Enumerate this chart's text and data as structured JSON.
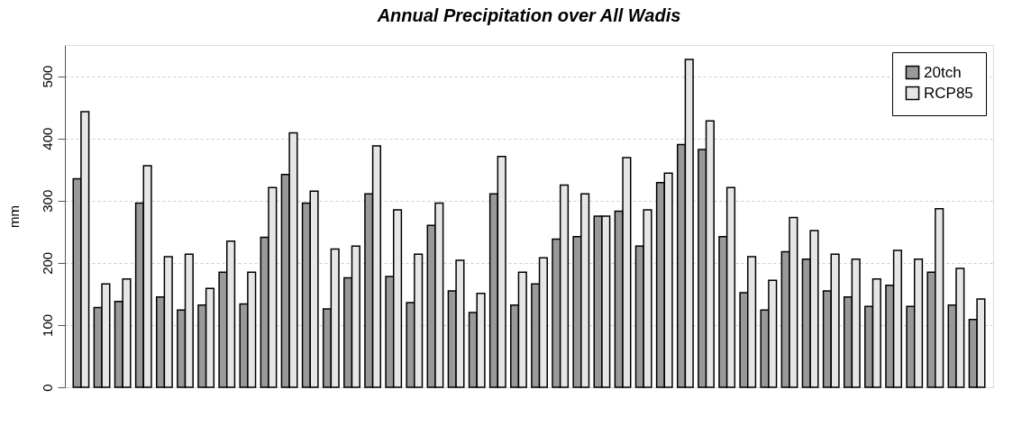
{
  "chart_data": {
    "type": "bar",
    "title": "Annual Precipitation over All Wadis",
    "ylabel": "mm",
    "categories": [
      null,
      null,
      null,
      null,
      null,
      null,
      null,
      null,
      null,
      null,
      null,
      null,
      null,
      null,
      null,
      null,
      null,
      null,
      null,
      null,
      null,
      null,
      null,
      null,
      null,
      null,
      null,
      null,
      null,
      null,
      null,
      null,
      null,
      null,
      null,
      null,
      null,
      null,
      null,
      null,
      null,
      null,
      null,
      null
    ],
    "series": [
      {
        "name": "20tch",
        "color": "#999999",
        "values": [
          335,
          128,
          138,
          296,
          145,
          124,
          132,
          185,
          134,
          241,
          342,
          296,
          126,
          176,
          311,
          178,
          136,
          260,
          155,
          120,
          311,
          132,
          166,
          238,
          242,
          275,
          283,
          227,
          329,
          390,
          382,
          242,
          152,
          124,
          218,
          206,
          155,
          145,
          130,
          164,
          130,
          185,
          132,
          109
        ]
      },
      {
        "name": "RCP85",
        "color": "#e6e6e6",
        "values": [
          443,
          166,
          174,
          356,
          210,
          214,
          159,
          235,
          185,
          321,
          409,
          315,
          222,
          227,
          388,
          285,
          214,
          296,
          204,
          151,
          371,
          185,
          208,
          325,
          311,
          275,
          369,
          285,
          344,
          527,
          428,
          321,
          210,
          172,
          273,
          252,
          214,
          206,
          174,
          220,
          206,
          287,
          191,
          142
        ]
      }
    ],
    "ylim": [
      0,
      550
    ],
    "yticks": [
      0,
      100,
      200,
      300,
      400,
      500
    ],
    "grid": "y",
    "legend": "top right",
    "tick_labels": "y"
  }
}
